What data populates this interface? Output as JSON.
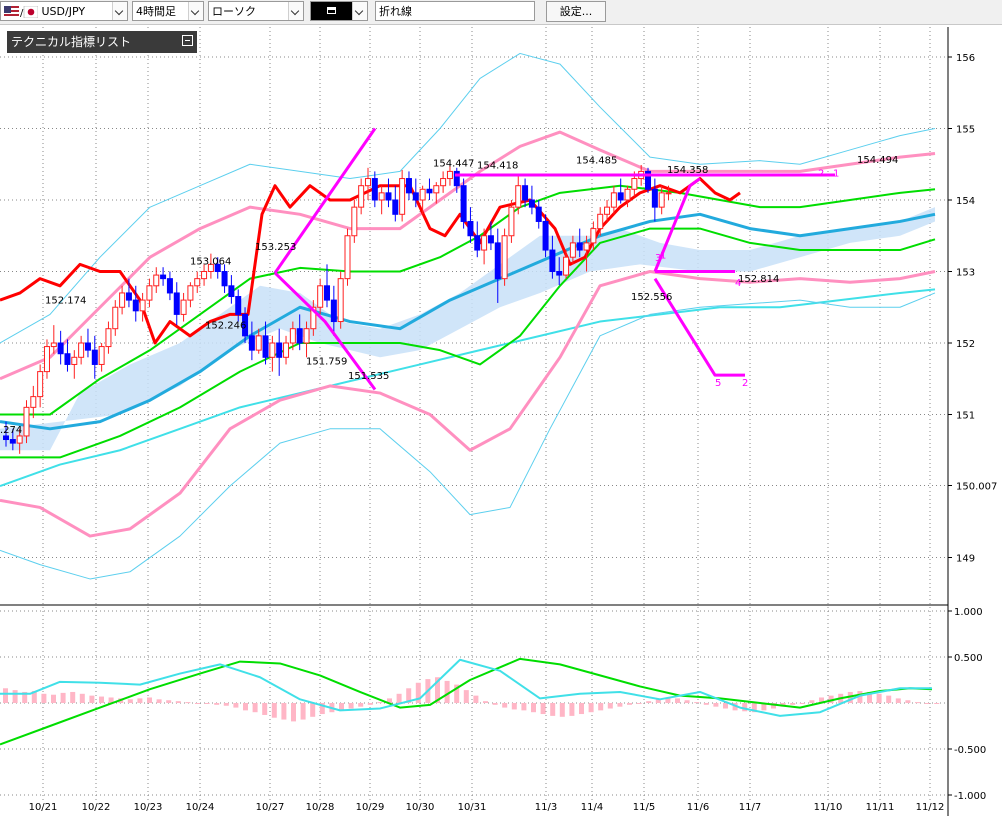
{
  "toolbar": {
    "symbol": "USD/JPY",
    "timeframe": "4時間足",
    "chart_style": "ローソク",
    "drawing_tool": "",
    "tool_mode": "折れ線",
    "settings_button": "設定..."
  },
  "panel": {
    "indicator_list_title": "テクニカル指標リスト"
  },
  "colors": {
    "up": "#ff2020",
    "down": "#0000ff",
    "tenkan": "#ff0000",
    "bb_outer": "#5ccfee",
    "bb_mid": "#ff90c0",
    "ma": "#00dd00",
    "ma_blue": "#22aadd",
    "ma_long": "#40e0e8",
    "kumo": "#c8e0f8",
    "wave": "#ff00ff",
    "macd_hist": "#ffb6c6"
  },
  "chart_data": [
    {
      "type": "candlestick",
      "symbol": "USD/JPY",
      "y_ticks": [
        "156",
        "155",
        "154",
        "153",
        "152",
        "151",
        "150.007",
        "149"
      ],
      "x_ticks": [
        "10/21",
        "10/22",
        "10/23",
        "10/24",
        "10/27",
        "10/28",
        "10/29",
        "10/30",
        "10/31",
        "11/3",
        "11/4",
        "11/5",
        "11/6",
        "11/7",
        "11/10",
        "11/11",
        "11/12"
      ],
      "ylim": [
        148.3,
        156.5
      ],
      "annotations": [
        "152.174",
        "153.064",
        "152.246",
        "153.253",
        "151.759",
        "151.535",
        "154.447",
        "154.418",
        "154.485",
        "154.358",
        "152.556",
        "152.814",
        "154.494",
        ".274"
      ],
      "wave_labels": [
        "1",
        "2",
        "3",
        "4",
        "5",
        "2",
        "1"
      ],
      "candles": [
        [
          150.7,
          150.9,
          150.55,
          150.65
        ],
        [
          150.65,
          150.8,
          150.5,
          150.6
        ],
        [
          150.6,
          150.8,
          150.45,
          150.7
        ],
        [
          150.7,
          151.2,
          150.6,
          151.1
        ],
        [
          151.1,
          151.4,
          150.95,
          151.25
        ],
        [
          151.25,
          151.7,
          151.1,
          151.6
        ],
        [
          151.6,
          152.05,
          151.5,
          151.95
        ],
        [
          151.95,
          152.25,
          151.85,
          152.0
        ],
        [
          152.0,
          152.17,
          151.7,
          151.85
        ],
        [
          151.85,
          152.05,
          151.6,
          151.7
        ],
        [
          151.7,
          151.9,
          151.5,
          151.8
        ],
        [
          151.8,
          152.1,
          151.7,
          152.0
        ],
        [
          152.0,
          152.2,
          151.8,
          151.9
        ],
        [
          151.9,
          152.1,
          151.5,
          151.7
        ],
        [
          151.7,
          152.0,
          151.6,
          151.95
        ],
        [
          151.95,
          152.3,
          151.85,
          152.2
        ],
        [
          152.2,
          152.6,
          152.1,
          152.5
        ],
        [
          152.5,
          152.8,
          152.4,
          152.7
        ],
        [
          152.7,
          152.9,
          152.5,
          152.6
        ],
        [
          152.6,
          152.8,
          152.3,
          152.45
        ],
        [
          152.45,
          152.7,
          152.3,
          152.6
        ],
        [
          152.6,
          152.9,
          152.5,
          152.8
        ],
        [
          152.8,
          153.06,
          152.7,
          152.95
        ],
        [
          152.95,
          153.06,
          152.8,
          152.9
        ],
        [
          152.9,
          153.0,
          152.6,
          152.7
        ],
        [
          152.7,
          152.85,
          152.25,
          152.4
        ],
        [
          152.4,
          152.7,
          152.3,
          152.6
        ],
        [
          152.6,
          152.85,
          152.5,
          152.8
        ],
        [
          152.8,
          153.0,
          152.7,
          152.9
        ],
        [
          152.9,
          153.1,
          152.8,
          153.0
        ],
        [
          153.0,
          153.25,
          152.9,
          153.1
        ],
        [
          153.1,
          153.2,
          152.9,
          153.0
        ],
        [
          153.0,
          153.1,
          152.7,
          152.8
        ],
        [
          152.8,
          152.95,
          152.55,
          152.65
        ],
        [
          152.65,
          152.75,
          152.3,
          152.4
        ],
        [
          152.4,
          152.5,
          152.0,
          152.1
        ],
        [
          152.1,
          152.3,
          151.76,
          151.9
        ],
        [
          151.9,
          152.2,
          151.85,
          152.1
        ],
        [
          152.1,
          152.3,
          151.7,
          151.8
        ],
        [
          151.8,
          152.1,
          151.6,
          152.0
        ],
        [
          152.0,
          152.2,
          151.54,
          151.8
        ],
        [
          151.8,
          152.1,
          151.7,
          152.0
        ],
        [
          152.0,
          152.3,
          151.9,
          152.2
        ],
        [
          152.2,
          152.4,
          151.9,
          152.0
        ],
        [
          152.0,
          152.3,
          151.8,
          152.2
        ],
        [
          152.2,
          152.6,
          152.1,
          152.5
        ],
        [
          152.5,
          152.9,
          152.4,
          152.8
        ],
        [
          152.8,
          153.1,
          152.5,
          152.6
        ],
        [
          152.6,
          152.8,
          152.1,
          152.3
        ],
        [
          152.3,
          153.0,
          152.2,
          152.9
        ],
        [
          152.9,
          153.6,
          152.8,
          153.5
        ],
        [
          153.5,
          154.0,
          153.4,
          153.9
        ],
        [
          153.9,
          154.3,
          153.8,
          154.2
        ],
        [
          154.2,
          154.45,
          154.0,
          154.3
        ],
        [
          154.3,
          154.4,
          153.9,
          154.0
        ],
        [
          154.0,
          154.2,
          153.8,
          154.1
        ],
        [
          154.1,
          154.3,
          153.9,
          154.0
        ],
        [
          154.0,
          154.2,
          153.7,
          153.8
        ],
        [
          153.8,
          154.42,
          153.7,
          154.3
        ],
        [
          154.3,
          154.4,
          154.0,
          154.1
        ],
        [
          154.1,
          154.3,
          153.9,
          154.0
        ],
        [
          154.0,
          154.2,
          153.8,
          154.15
        ],
        [
          154.15,
          154.3,
          154.0,
          154.1
        ],
        [
          154.1,
          154.25,
          153.95,
          154.2
        ],
        [
          154.2,
          154.4,
          154.1,
          154.3
        ],
        [
          154.3,
          154.49,
          154.2,
          154.4
        ],
        [
          154.4,
          154.45,
          154.1,
          154.2
        ],
        [
          154.2,
          154.3,
          153.6,
          153.7
        ],
        [
          153.7,
          153.9,
          153.4,
          153.5
        ],
        [
          153.5,
          153.7,
          153.2,
          153.3
        ],
        [
          153.3,
          153.6,
          153.1,
          153.5
        ],
        [
          153.5,
          153.7,
          153.3,
          153.4
        ],
        [
          153.4,
          153.6,
          152.56,
          152.9
        ],
        [
          152.9,
          153.6,
          152.8,
          153.5
        ],
        [
          153.5,
          154.0,
          153.4,
          153.9
        ],
        [
          153.9,
          154.36,
          153.8,
          154.2
        ],
        [
          154.2,
          154.3,
          153.9,
          154.0
        ],
        [
          154.0,
          154.2,
          153.8,
          153.9
        ],
        [
          153.9,
          154.0,
          153.6,
          153.7
        ],
        [
          153.7,
          153.8,
          153.2,
          153.3
        ],
        [
          153.3,
          153.5,
          152.9,
          153.0
        ],
        [
          153.0,
          153.2,
          152.81,
          152.95
        ],
        [
          152.95,
          153.3,
          152.9,
          153.2
        ],
        [
          153.2,
          153.5,
          153.1,
          153.4
        ],
        [
          153.4,
          153.6,
          153.2,
          153.3
        ],
        [
          153.3,
          153.5,
          153.0,
          153.4
        ],
        [
          153.4,
          153.7,
          153.3,
          153.6
        ],
        [
          153.6,
          153.9,
          153.5,
          153.8
        ],
        [
          153.8,
          154.0,
          153.7,
          153.9
        ],
        [
          153.9,
          154.2,
          153.8,
          154.1
        ],
        [
          154.1,
          154.3,
          153.95,
          154.0
        ],
        [
          154.0,
          154.2,
          153.9,
          154.15
        ],
        [
          154.15,
          154.4,
          154.05,
          154.3
        ],
        [
          154.3,
          154.49,
          154.2,
          154.4
        ],
        [
          154.4,
          154.45,
          154.1,
          154.15
        ],
        [
          154.15,
          154.3,
          153.7,
          153.9
        ],
        [
          153.9,
          154.2,
          153.8,
          154.1
        ],
        [
          154.1,
          154.2,
          154.0,
          154.1
        ]
      ]
    },
    {
      "type": "line",
      "name": "MACD",
      "y_ticks": [
        "1.000",
        "0.500",
        "-0.500",
        "-1.000"
      ],
      "ylim": [
        -1.0,
        1.0
      ]
    }
  ]
}
